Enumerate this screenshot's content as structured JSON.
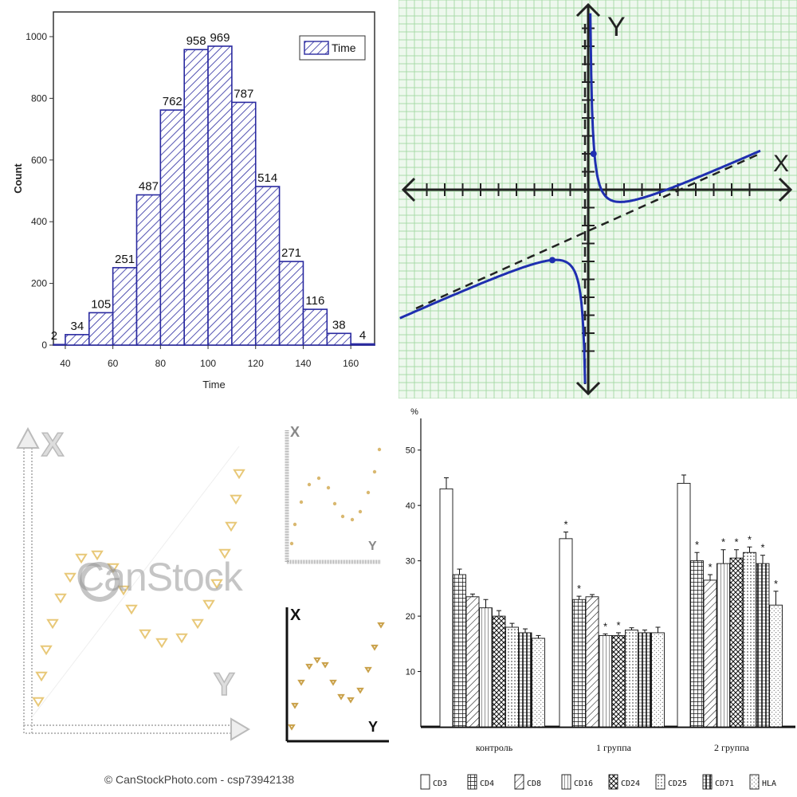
{
  "chart_data": [
    {
      "type": "bar",
      "title": "",
      "xlabel": "Time",
      "ylabel": "Count",
      "legend": "Time",
      "legend_placement": "top-right",
      "xlim": [
        35,
        170
      ],
      "ylim": [
        0,
        1080
      ],
      "x_ticks": [
        "40",
        "60",
        "80",
        "100",
        "120",
        "140",
        "160"
      ],
      "y_ticks": [
        "0",
        "200",
        "400",
        "600",
        "800",
        "1000"
      ],
      "bin_starts": [
        30,
        40,
        50,
        60,
        70,
        80,
        90,
        100,
        110,
        120,
        130,
        140,
        150,
        160
      ],
      "bin_width": 10,
      "values": [
        2,
        34,
        105,
        251,
        487,
        762,
        958,
        969,
        787,
        514,
        271,
        116,
        38,
        4
      ],
      "color": "#2a2aa0"
    },
    {
      "type": "line",
      "title": "",
      "xlabel": "X",
      "ylabel": "Y",
      "xlim": [
        -10,
        10
      ],
      "ylim": [
        -11,
        10
      ],
      "grid": true,
      "asymptote_label": "",
      "series": [
        {
          "kind": "curve",
          "color": "#1f2fb0"
        },
        {
          "kind": "oblique-asymptote",
          "color": "#222222"
        },
        {
          "kind": "vertical-asymptote",
          "color": "#222222"
        }
      ],
      "marked_points": [
        [
          0.3,
          3
        ],
        [
          -2,
          -5.1
        ]
      ]
    },
    {
      "type": "scatter",
      "title": "",
      "panels": [
        {
          "xlabel": "Y",
          "ylabel": "X",
          "marker_color": "#e8c878"
        },
        {
          "xlabel": "Y",
          "ylabel": "X",
          "marker_color": "#d9b870"
        },
        {
          "xlabel": "Y",
          "ylabel": "X",
          "marker_color": "#c9a14a"
        }
      ],
      "watermark": "CanStock",
      "credit": "© CanStockPhoto.com - csp73942138"
    },
    {
      "type": "bar",
      "title": "",
      "ylabel": "%",
      "ylim": [
        0,
        55
      ],
      "y_ticks": [
        "10",
        "20",
        "30",
        "40",
        "50"
      ],
      "categories": [
        "контроль",
        "1 группа",
        "2 группа"
      ],
      "legend_placement": "bottom",
      "series": [
        {
          "name": "CD3",
          "values": [
            43,
            34,
            44
          ],
          "errors": [
            2,
            1.2,
            1.5
          ],
          "star": [
            false,
            true,
            false
          ]
        },
        {
          "name": "CD4",
          "values": [
            27.5,
            23,
            30
          ],
          "errors": [
            1,
            0.6,
            1.5
          ],
          "star": [
            false,
            true,
            true
          ]
        },
        {
          "name": "CD8",
          "values": [
            23.5,
            23.5,
            26.5
          ],
          "errors": [
            0.5,
            0.4,
            1
          ],
          "star": [
            false,
            false,
            true
          ]
        },
        {
          "name": "CD16",
          "values": [
            21.5,
            16.5,
            29.5
          ],
          "errors": [
            1.5,
            0.3,
            2.5
          ],
          "star": [
            false,
            true,
            true
          ]
        },
        {
          "name": "CD24",
          "values": [
            20,
            16.5,
            30.5
          ],
          "errors": [
            1,
            0.5,
            1.5
          ],
          "star": [
            false,
            true,
            true
          ]
        },
        {
          "name": "CD25",
          "values": [
            18,
            17.5,
            31.5
          ],
          "errors": [
            0.7,
            0.4,
            1
          ],
          "star": [
            false,
            false,
            true
          ]
        },
        {
          "name": "CD71",
          "values": [
            17,
            17,
            29.5
          ],
          "errors": [
            0.7,
            0.5,
            1.5
          ],
          "star": [
            false,
            false,
            true
          ]
        },
        {
          "name": "HLA",
          "values": [
            16,
            17,
            22
          ],
          "errors": [
            0.5,
            1,
            2.5
          ],
          "star": [
            false,
            false,
            true
          ]
        }
      ]
    }
  ]
}
